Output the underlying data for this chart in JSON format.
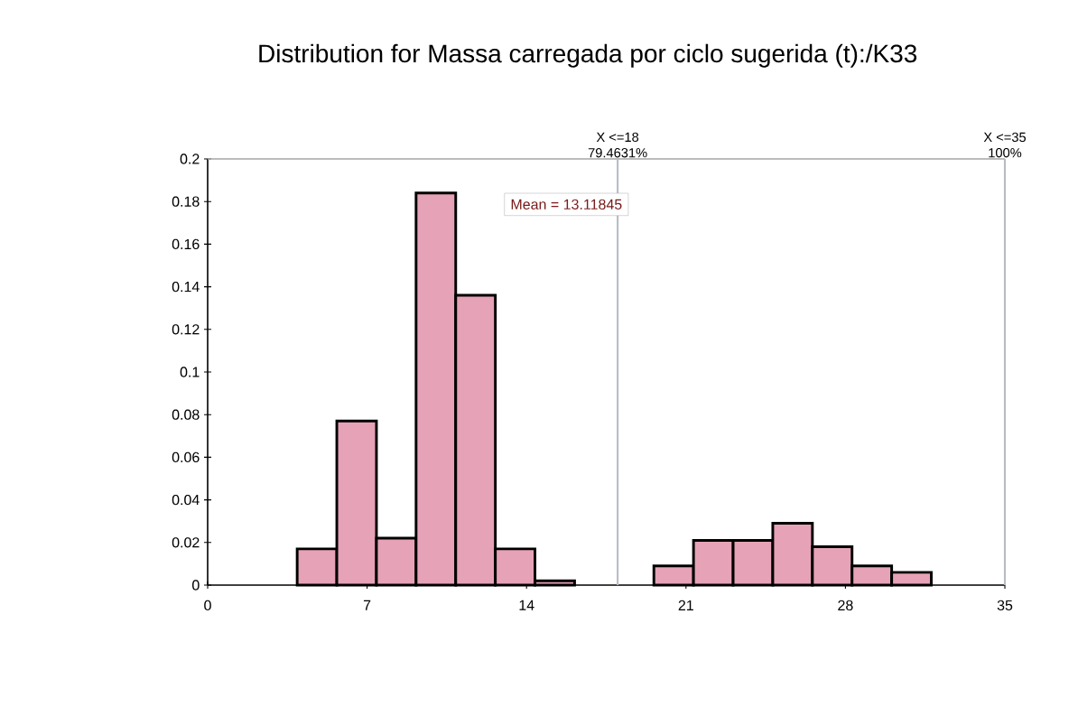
{
  "chart_data": {
    "type": "histogram",
    "title": "Distribution for Massa carregada por ciclo sugerida (t):/K33",
    "bins": [
      3.93,
      5.67,
      7.41,
      9.15,
      10.89,
      12.63,
      14.37,
      16.11,
      17.85,
      19.59,
      21.33,
      23.07,
      24.81,
      26.55,
      28.29,
      30.03,
      31.77
    ],
    "values": [
      0.017,
      0.077,
      0.022,
      0.184,
      0.136,
      0.017,
      0.002,
      0,
      0,
      0.009,
      0.021,
      0.021,
      0.029,
      0.018,
      0.009,
      0.006
    ],
    "color": "#e6a2b6",
    "xlim": [
      0,
      35
    ],
    "xticks": [
      0,
      7,
      14,
      21,
      28,
      35
    ],
    "ylim": [
      0,
      0.2
    ],
    "yticks": [
      0,
      0.02,
      0.04,
      0.06,
      0.08,
      0.1,
      0.12,
      0.14,
      0.16,
      0.18,
      0.2
    ],
    "ref_lines": [
      {
        "axis": "x",
        "value": 18,
        "label": "X <=18",
        "color": "#b8bcc4"
      },
      {
        "axis": "x",
        "value": 35,
        "label": "X <=35",
        "color": "#b8bcc4"
      }
    ],
    "annotations": [
      {
        "text": "79.4631%",
        "x": 18,
        "y": 0.2
      },
      {
        "text": "100%",
        "x": 35,
        "y": 0.2
      },
      "Mean = 13.11845"
    ],
    "grid": false
  }
}
